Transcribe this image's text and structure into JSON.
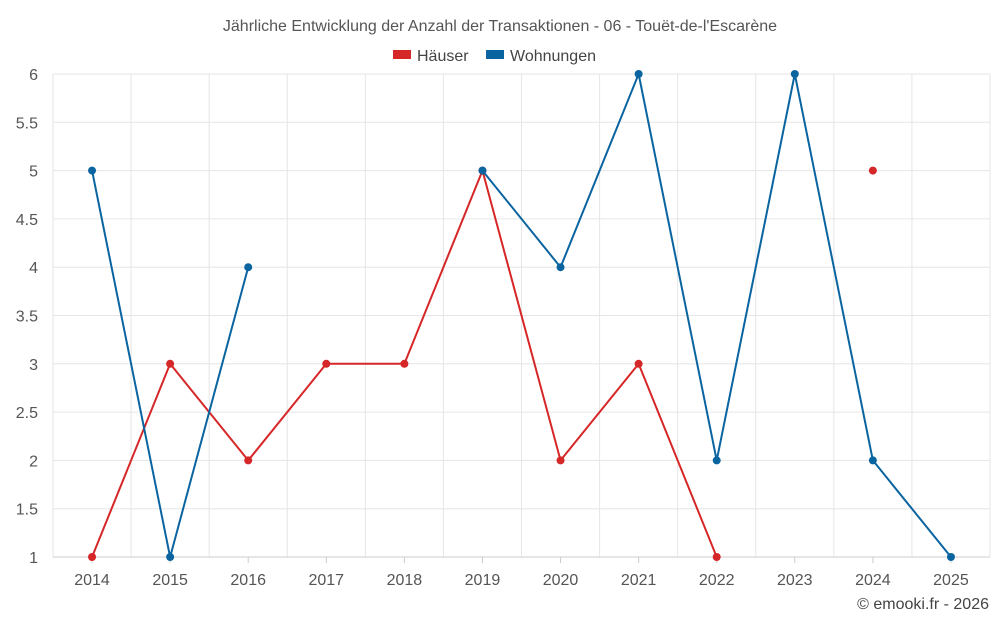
{
  "chart_data": {
    "type": "line",
    "title": "Jährliche Entwicklung der Anzahl der Transaktionen - 06 - Touët-de-l'Escarène",
    "xlabel": "",
    "ylabel": "",
    "categories": [
      "2014",
      "2015",
      "2016",
      "2017",
      "2018",
      "2019",
      "2020",
      "2021",
      "2022",
      "2023",
      "2024",
      "2025"
    ],
    "ylim": [
      1,
      6
    ],
    "yticks": [
      1,
      1.5,
      2,
      2.5,
      3,
      3.5,
      4,
      4.5,
      5,
      5.5,
      6
    ],
    "grid": true,
    "legend_position": "top-center",
    "series": [
      {
        "name": "Häuser",
        "color": "#d62728",
        "values": [
          1,
          3,
          2,
          3,
          3,
          5,
          2,
          3,
          1,
          null,
          5,
          null
        ]
      },
      {
        "name": "Wohnungen",
        "color": "#0a64a0",
        "values": [
          5,
          1,
          4,
          null,
          null,
          5,
          4,
          6,
          2,
          6,
          2,
          1
        ]
      }
    ]
  },
  "copyright": "© emooki.fr - 2026"
}
